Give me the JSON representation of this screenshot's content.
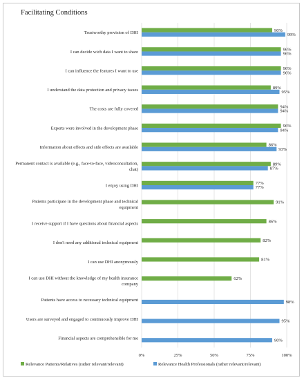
{
  "chart_data": {
    "type": "bar",
    "orientation": "horizontal",
    "title": "Facilitating Conditions",
    "xlim": [
      0,
      100
    ],
    "x_ticks": [
      "0%",
      "25%",
      "50%",
      "75%",
      "100%"
    ],
    "grid": true,
    "legend_position": "bottom",
    "categories": [
      [
        "Trustworthy provision of DHI"
      ],
      [
        "I can decide wich data I want to share"
      ],
      [
        "I can influence the features I want to use"
      ],
      [
        "I understand the data protection and privacy issues"
      ],
      [
        "The costs are fully covered"
      ],
      [
        "Experts were involved in the development phase"
      ],
      [
        "Information about effects and side effects are available"
      ],
      [
        "Permanent contact is available (e.g., face-to-face, videoconsultation,",
        "chat)"
      ],
      [
        "I enjoy using DHI"
      ],
      [
        "Patients participate in the development phase and technical",
        "equipment"
      ],
      [
        "I receive support if I have questions about financial aspects"
      ],
      [
        "I don't need any additional technical equipment"
      ],
      [
        "I can use DHI anonymously"
      ],
      [
        "I can use DHI without the knowledge of my health insurance",
        "company"
      ],
      [
        "Patients have access to necessary technical equipment"
      ],
      [
        "Users are surveyed and engaged to continuously improve DHI"
      ],
      [
        "Financial aspects are comprehensible for me"
      ]
    ],
    "series": [
      {
        "name": "Relevance Patients/Relatives (rather relevant/relevant)",
        "color": "#70ad47",
        "values": [
          90,
          96,
          96,
          89,
          94,
          96,
          86,
          89,
          77,
          91,
          86,
          82,
          81,
          62,
          null,
          null,
          null
        ],
        "labels": [
          "90%",
          "96%",
          "96%",
          "89%",
          "94%",
          "96%",
          "86%",
          "89%",
          "77%",
          "91%",
          "86%",
          "82%",
          "81%",
          "62%",
          "",
          "",
          ""
        ]
      },
      {
        "name": "Relevance Health Professionals (rather relevant/relevant)",
        "color": "#5b9bd5",
        "values": [
          99,
          96,
          96,
          95,
          94,
          94,
          93,
          87,
          77,
          null,
          null,
          null,
          null,
          null,
          98,
          95,
          90
        ],
        "labels": [
          "99%",
          "96%",
          "96%",
          "95%",
          "94%",
          "94%",
          "93%",
          "87%",
          "77%",
          "",
          "",
          "",
          "",
          "",
          "98%",
          "95%",
          "90%"
        ]
      }
    ]
  }
}
